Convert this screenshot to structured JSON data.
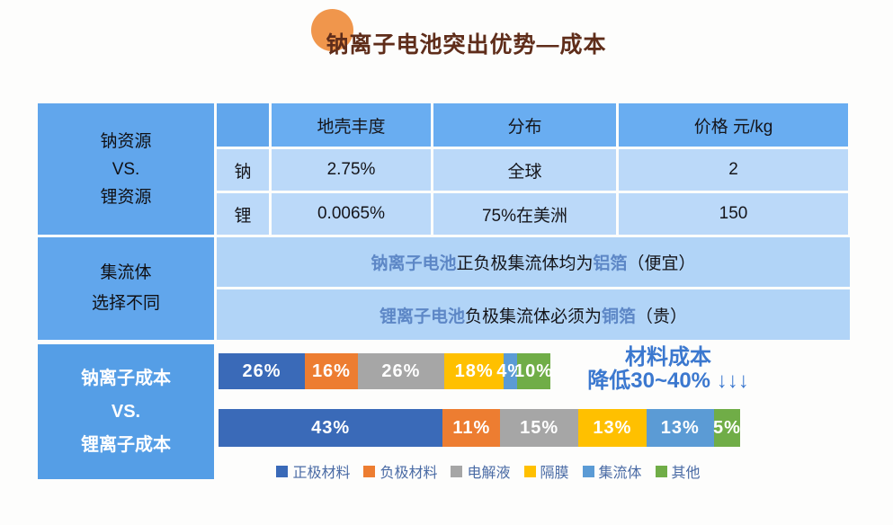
{
  "title": {
    "text": "钠离子电池突出优势—成本"
  },
  "colors": {
    "title_color": "#5f2d1a",
    "circle_color": "#f0964c",
    "header_blue": "#61a6ec",
    "subheader_blue": "#69adf1",
    "light_blue": "#bbd9f9",
    "mid_light_blue": "#b1d4f7",
    "bottom_header_blue": "#559ee6",
    "accent_text": "#5d87c6",
    "annotation_blue": "#3b78cf",
    "legend_text": "#4a6ba5"
  },
  "resource_section": {
    "row_header_lines": [
      "钠资源",
      "VS.",
      "锂资源"
    ]
  },
  "collector": {
    "row_header_lines": [
      "集流体",
      "选择不同"
    ],
    "rows": [
      {
        "em1": "钠离子电池",
        "mid": "正负极集流体均为",
        "em2": "铝箔",
        "tail": "（便宜）"
      },
      {
        "em1": "锂离子电池",
        "mid": "负极集流体必须为",
        "em2": "铜箔",
        "tail": "（贵）"
      }
    ]
  },
  "cost": {
    "row_header_lines": [
      "钠离子成本",
      "VS.",
      "锂离子成本"
    ]
  },
  "chart_data": [
    {
      "type": "table",
      "title": "钠资源 VS. 锂资源",
      "columns": [
        "",
        "地壳丰度",
        "分布",
        "价格 元/kg"
      ],
      "rows": [
        [
          "钠",
          "2.75%",
          "全球",
          "2"
        ],
        [
          "锂",
          "0.0065%",
          "75%在美洲",
          "150"
        ]
      ]
    },
    {
      "type": "bar",
      "orientation": "horizontal-stacked",
      "unit": "%",
      "categories": [
        "钠离子成本",
        "锂离子成本"
      ],
      "segments": [
        "正极材料",
        "负极材料",
        "电解液",
        "隔膜",
        "集流体",
        "其他"
      ],
      "colors": [
        "#3a6ab8",
        "#ed7d31",
        "#a6a6a6",
        "#ffc000",
        "#5b9bd5",
        "#70ad47"
      ],
      "series": [
        {
          "name": "钠离子成本",
          "values": [
            26,
            16,
            26,
            18,
            4,
            10
          ],
          "length_ratio": 0.636
        },
        {
          "name": "锂离子成本",
          "values": [
            43,
            11,
            15,
            13,
            13,
            5
          ],
          "length_ratio": 1.0
        }
      ],
      "annotation_lines": [
        "材料成本",
        "降低30~40% ↓↓↓"
      ],
      "legend_position": "bottom"
    }
  ]
}
